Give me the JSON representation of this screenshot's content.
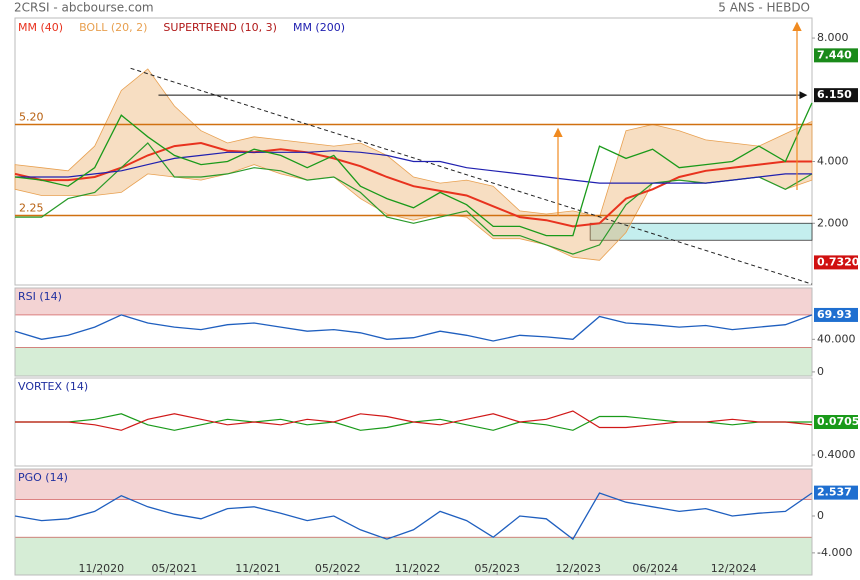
{
  "chart_data": [
    {
      "type": "line",
      "title": "2CRSI - abcbourse.com",
      "subtitle": "5 ANS - HEBDO",
      "x": [
        0,
        2,
        4,
        6,
        8,
        10,
        12,
        14,
        16,
        18,
        20,
        22,
        24,
        26,
        28,
        30,
        32,
        34,
        36,
        38,
        40,
        42,
        44,
        46,
        48,
        50,
        52,
        54,
        56,
        58,
        60
      ],
      "values": [
        3.5,
        3.4,
        3.2,
        3.8,
        5.5,
        4.8,
        4.2,
        3.9,
        4.0,
        4.4,
        4.2,
        3.8,
        4.2,
        3.2,
        2.8,
        2.5,
        3.0,
        2.6,
        1.9,
        1.9,
        1.6,
        1.6,
        4.5,
        4.1,
        4.4,
        3.8,
        3.9,
        4.0,
        4.5,
        4.0,
        5.9
      ],
      "color": "#1a9a1a",
      "series": [
        {
          "name": "MM (40)",
          "color": "#e8321e",
          "values": [
            3.6,
            3.4,
            3.4,
            3.5,
            3.8,
            4.2,
            4.5,
            4.6,
            4.35,
            4.3,
            4.4,
            4.3,
            4.1,
            3.85,
            3.5,
            3.2,
            3.05,
            2.9,
            2.55,
            2.2,
            2.1,
            1.9,
            2.0,
            2.8,
            3.1,
            3.5,
            3.7,
            3.8,
            3.9,
            4.0,
            4.0
          ]
        },
        {
          "name": "BOLL (20, 2)",
          "color": "#e8a050",
          "upper": [
            3.9,
            3.8,
            3.7,
            4.5,
            6.3,
            7.0,
            5.8,
            5.0,
            4.6,
            4.8,
            4.7,
            4.6,
            4.5,
            4.6,
            4.2,
            3.5,
            3.3,
            3.4,
            3.2,
            2.4,
            2.3,
            2.4,
            2.2,
            5.0,
            5.2,
            5.0,
            4.7,
            4.6,
            4.5,
            4.9,
            5.3
          ],
          "lower": [
            3.1,
            2.9,
            2.9,
            2.9,
            3.0,
            3.6,
            3.5,
            3.4,
            3.6,
            3.9,
            3.6,
            3.4,
            3.5,
            2.8,
            2.3,
            2.1,
            2.3,
            2.2,
            1.5,
            1.5,
            1.3,
            0.9,
            0.8,
            1.7,
            3.3,
            3.4,
            3.3,
            3.4,
            3.5,
            3.1,
            3.4
          ]
        },
        {
          "name": "SUPERTREND (10, 3)",
          "color": "#b01818",
          "line_color": "#2a9a2a",
          "values": [
            2.2,
            2.2,
            2.8,
            3.0,
            3.8,
            4.6,
            3.5,
            3.5,
            3.6,
            3.8,
            3.7,
            3.4,
            3.5,
            3.0,
            2.2,
            2.0,
            2.2,
            2.4,
            1.6,
            1.6,
            1.3,
            1.0,
            1.3,
            2.6,
            3.3,
            3.4,
            3.3,
            3.4,
            3.5,
            3.1,
            3.6
          ]
        },
        {
          "name": "MM (200)",
          "color": "#2020b0",
          "values": [
            3.5,
            3.5,
            3.5,
            3.6,
            3.7,
            3.9,
            4.1,
            4.2,
            4.3,
            4.3,
            4.3,
            4.3,
            4.35,
            4.3,
            4.2,
            4.0,
            4.0,
            3.8,
            3.7,
            3.6,
            3.5,
            3.4,
            3.3,
            3.3,
            3.3,
            3.3,
            3.3,
            3.4,
            3.5,
            3.6,
            3.6
          ]
        }
      ],
      "xlim": [
        0,
        60
      ],
      "ylim": [
        0,
        8.65
      ],
      "yticks": [
        {
          "value": 8,
          "label": "8.000"
        },
        {
          "value": 4,
          "label": "4.000"
        },
        {
          "value": 2,
          "label": "2.000"
        }
      ],
      "levels": [
        {
          "value": 5.2,
          "label": "5.20"
        },
        {
          "value": 2.25,
          "label": "2.25"
        }
      ],
      "markers": [
        {
          "value": 7.44,
          "label": "7.440",
          "color": "#1a8a1a"
        },
        {
          "value": 6.15,
          "label": "6.150",
          "color": "#111111",
          "arrow_x": [
            10.8,
            59.5
          ]
        },
        {
          "value": 0.732,
          "label": "0.7320",
          "color": "#d01010"
        }
      ],
      "trendline": {
        "x": [
          8.7,
          60
        ],
        "values": [
          7.02,
          0.03
        ]
      },
      "zone": {
        "x": [
          43.3,
          60
        ],
        "range": [
          1.45,
          2.0
        ],
        "color": "#c4eeee"
      }
    },
    {
      "type": "line",
      "title": "RSI (14)",
      "x": [
        0,
        2,
        4,
        6,
        8,
        10,
        12,
        14,
        16,
        18,
        20,
        22,
        24,
        26,
        28,
        30,
        32,
        34,
        36,
        38,
        40,
        42,
        44,
        46,
        48,
        50,
        52,
        54,
        56,
        58,
        60
      ],
      "values": [
        50,
        40,
        45,
        55,
        70,
        60,
        55,
        52,
        58,
        60,
        55,
        50,
        52,
        48,
        40,
        42,
        50,
        45,
        38,
        45,
        43,
        40,
        68,
        60,
        58,
        55,
        57,
        52,
        55,
        58,
        70
      ],
      "color": "#1f5fbf",
      "xlim": [
        0,
        60
      ],
      "ylim": [
        -5,
        103
      ],
      "yticks": [
        {
          "value": 40,
          "label": "40.000"
        },
        0
      ],
      "zones": [
        {
          "range": [
            70,
            103
          ],
          "color": "#f0c8c8"
        },
        {
          "range": [
            -5,
            30
          ],
          "color": "#cce8cc"
        }
      ],
      "marker": {
        "value": 69.93,
        "label": "69.93",
        "color": "#1f6fd0"
      }
    },
    {
      "type": "line",
      "title": "VORTEX (14)",
      "x": [
        0,
        2,
        4,
        6,
        8,
        10,
        12,
        14,
        16,
        18,
        20,
        22,
        24,
        26,
        28,
        30,
        32,
        34,
        36,
        38,
        40,
        42,
        44,
        46,
        48,
        50,
        52,
        54,
        56,
        58,
        60
      ],
      "series": [
        {
          "color": "#1a9a1a",
          "values": [
            1.0,
            1.0,
            1.0,
            1.05,
            1.15,
            0.95,
            0.85,
            0.95,
            1.05,
            1.0,
            1.05,
            0.95,
            1.0,
            0.85,
            0.9,
            1.0,
            1.05,
            0.95,
            0.85,
            1.0,
            0.95,
            0.85,
            1.1,
            1.1,
            1.05,
            1.0,
            1.0,
            0.95,
            1.0,
            1.0,
            1.0
          ]
        },
        {
          "color": "#d01818",
          "values": [
            1.0,
            1.0,
            1.0,
            0.95,
            0.85,
            1.05,
            1.15,
            1.05,
            0.95,
            1.0,
            0.95,
            1.05,
            1.0,
            1.15,
            1.1,
            1.0,
            0.95,
            1.05,
            1.15,
            1.0,
            1.05,
            1.2,
            0.9,
            0.9,
            0.95,
            1.0,
            1.0,
            1.05,
            1.0,
            1.0,
            0.95
          ]
        }
      ],
      "xlim": [
        0,
        60
      ],
      "ylim": [
        0.2,
        1.8
      ],
      "yticks": [
        {
          "value": 0.4,
          "label": "0.4000"
        }
      ],
      "marker": {
        "value": 0.0705,
        "label": "0.0705",
        "color": "#1a9a1a"
      }
    },
    {
      "type": "line",
      "title": "PGO (14)",
      "x": [
        0,
        2,
        4,
        6,
        8,
        10,
        12,
        14,
        16,
        18,
        20,
        22,
        24,
        26,
        28,
        30,
        32,
        34,
        36,
        38,
        40,
        42,
        44,
        46,
        48,
        50,
        52,
        54,
        56,
        58,
        60
      ],
      "values": [
        0,
        -0.5,
        -0.3,
        0.5,
        2.2,
        1.0,
        0.2,
        -0.3,
        0.8,
        1.0,
        0.3,
        -0.5,
        0,
        -1.5,
        -2.5,
        -1.5,
        0.5,
        -0.5,
        -2.3,
        0,
        -0.3,
        -2.5,
        2.5,
        1.5,
        1.0,
        0.5,
        0.8,
        0,
        0.3,
        0.5,
        2.5
      ],
      "color": "#1f5fbf",
      "xlim": [
        0,
        60
      ],
      "ylim": [
        -6.4,
        5.1
      ],
      "yticks": [
        0,
        {
          "value": -4,
          "label": "-4.000"
        }
      ],
      "zones": [
        {
          "range": [
            1.8,
            5.1
          ],
          "color": "#f0c8c8"
        },
        {
          "range": [
            -6.4,
            -2.3
          ],
          "color": "#cce8cc"
        }
      ],
      "marker": {
        "value": 2.537,
        "label": "2.537",
        "color": "#1f6fd0"
      },
      "xticks": [
        {
          "value": 6.5,
          "label": "11/2020"
        },
        {
          "value": 12.0,
          "label": "05/2021"
        },
        {
          "value": 18.3,
          "label": "11/2021"
        },
        {
          "value": 24.3,
          "label": "05/2022"
        },
        {
          "value": 30.3,
          "label": "11/2022"
        },
        {
          "value": 36.3,
          "label": "05/2023"
        },
        {
          "value": 42.4,
          "label": "12/2023"
        },
        {
          "value": 48.2,
          "label": "06/2024"
        },
        {
          "value": 54.1,
          "label": "12/2024"
        }
      ]
    }
  ]
}
